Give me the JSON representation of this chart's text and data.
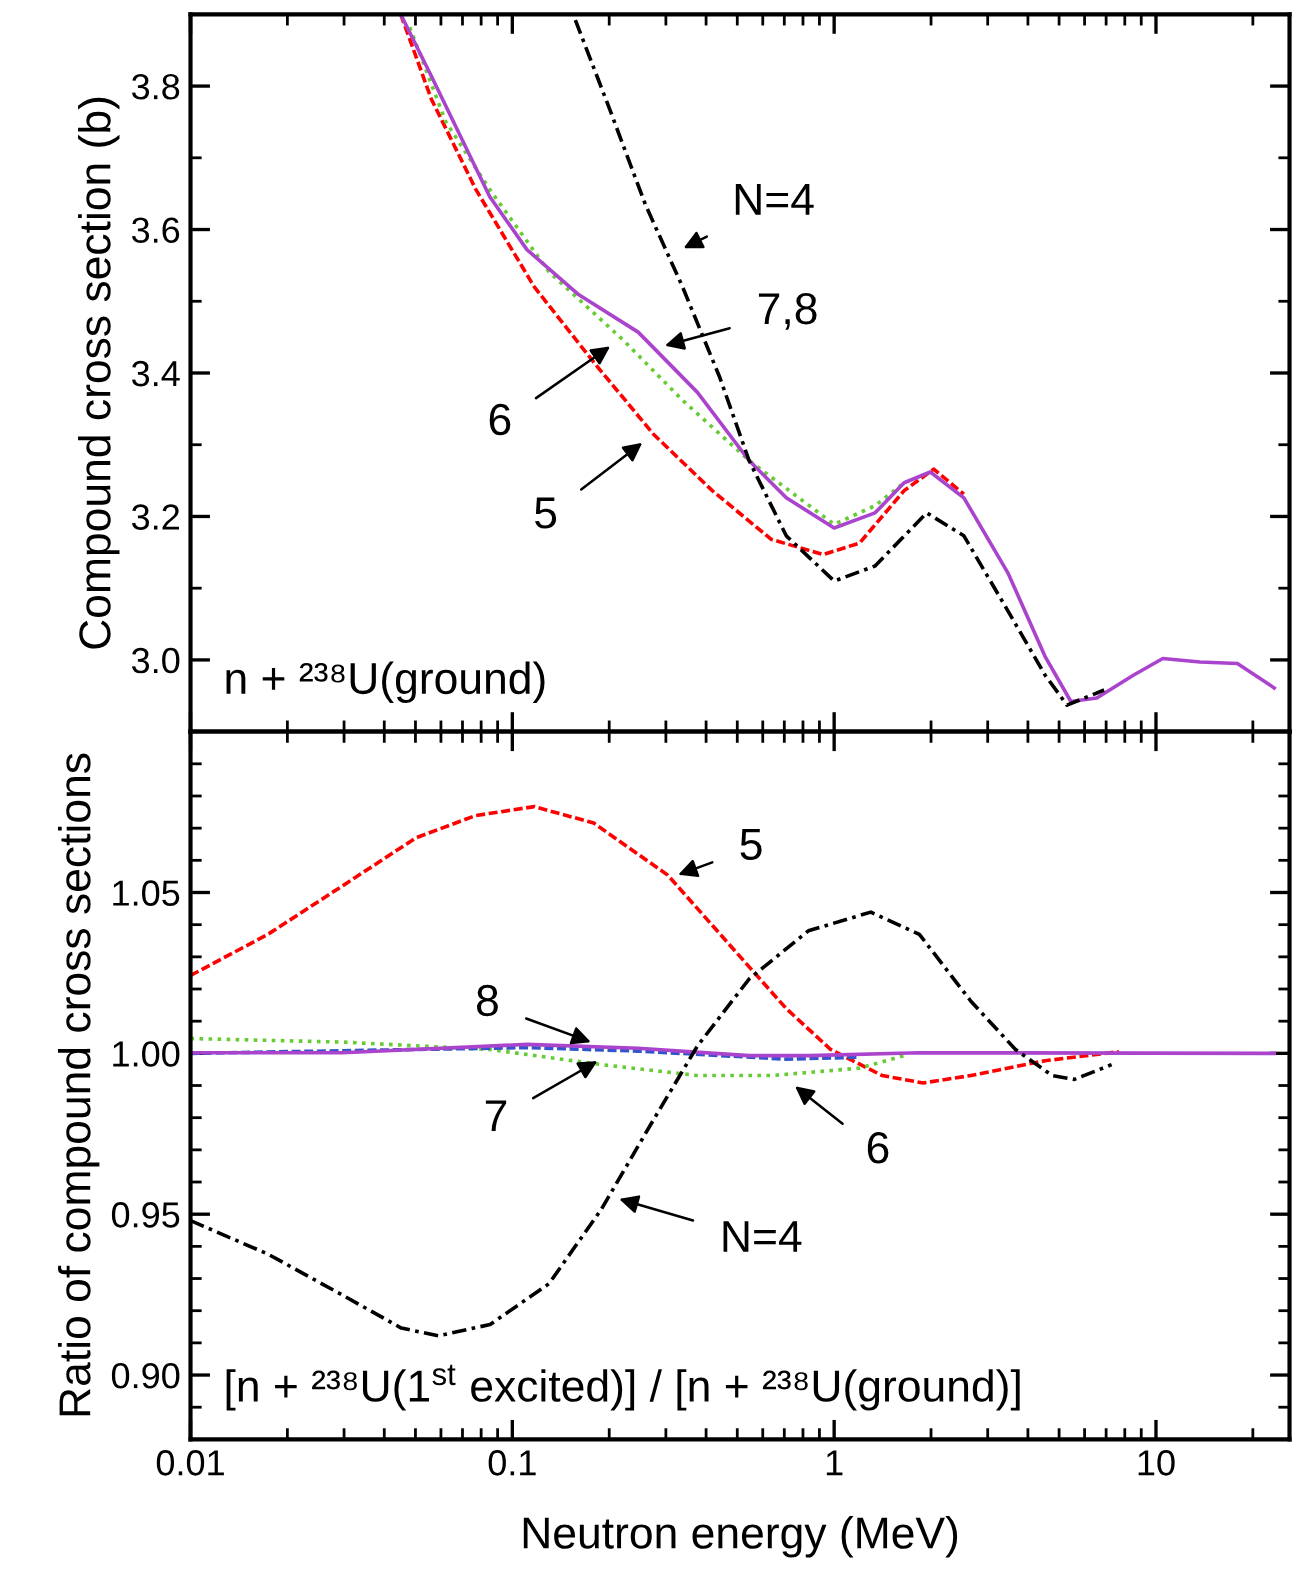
{
  "chart_data": [
    {
      "type": "line",
      "log": "x",
      "tick_labels": "y",
      "ylabel": "Compound cross section (b)",
      "xlim": [
        0.01,
        26
      ],
      "xticks": [
        0.01,
        0.1,
        1,
        10
      ],
      "ylim": [
        2.9,
        3.9
      ],
      "yticks": [
        {
          "value": 2.9,
          "label": null
        },
        {
          "value": 3.0,
          "label": "3.0"
        },
        {
          "value": 3.1,
          "label": null
        },
        {
          "value": 3.2,
          "label": "3.2"
        },
        {
          "value": 3.3,
          "label": null
        },
        {
          "value": 3.4,
          "label": "3.4"
        },
        {
          "value": 3.5,
          "label": null
        },
        {
          "value": 3.6,
          "label": "3.6"
        },
        {
          "value": 3.7,
          "label": null
        },
        {
          "value": 3.8,
          "label": "3.8"
        },
        {
          "value": 3.9,
          "label": null
        }
      ],
      "series": [
        {
          "color": "#ff0000",
          "line_style": "dashed",
          "x": [
            0.045,
            0.056,
            0.077,
            0.117,
            0.179,
            0.274,
            0.418,
            0.638,
            0.925,
            1.2,
            1.65,
            2.04,
            2.53
          ],
          "values": [
            3.9,
            3.782,
            3.656,
            3.52,
            3.415,
            3.315,
            3.236,
            3.168,
            3.147,
            3.163,
            3.236,
            3.266,
            3.231
          ]
        },
        {
          "color": "#66cc33",
          "line_style": "dotted",
          "x": [
            0.048,
            0.062,
            0.085,
            0.13,
            0.221,
            0.338,
            0.544,
            1.0,
            1.34,
            1.65
          ],
          "values": [
            3.882,
            3.751,
            3.656,
            3.541,
            3.446,
            3.362,
            3.278,
            3.189,
            3.215,
            3.247
          ]
        },
        {
          "color": "#aa44cc",
          "line_style": "solid",
          "x": [
            0.045,
            0.056,
            0.069,
            0.085,
            0.111,
            0.161,
            0.246,
            0.376,
            0.544,
            0.71,
            1.0,
            1.34,
            1.65,
            1.99,
            2.53,
            3.47,
            4.52,
            5.44,
            6.55,
            8.53,
            10.5,
            13.7,
            17.9,
            23.3
          ],
          "values": [
            3.9,
            3.814,
            3.73,
            3.646,
            3.572,
            3.509,
            3.457,
            3.373,
            3.278,
            3.226,
            3.184,
            3.205,
            3.247,
            3.262,
            3.226,
            3.121,
            3.005,
            2.942,
            2.947,
            2.979,
            3.002,
            2.997,
            2.995,
            2.961
          ]
        },
        {
          "color": "#000000",
          "line_style": "dashdot",
          "x": [
            0.157,
            0.199,
            0.259,
            0.338,
            0.441,
            0.544,
            0.71,
            1.0,
            1.34,
            1.94,
            2.53,
            3.47,
            4.52,
            5.29,
            6.9
          ],
          "values": [
            3.892,
            3.772,
            3.635,
            3.52,
            3.394,
            3.278,
            3.173,
            3.11,
            3.131,
            3.205,
            3.173,
            3.068,
            2.979,
            2.937,
            2.958
          ]
        }
      ],
      "annotations": [
        {
          "text": "N=4",
          "x": 0.317,
          "y": 3.567
        },
        {
          "text": "7,8",
          "x": 0.276,
          "y": 3.434
        },
        {
          "text": "6",
          "x": 0.215,
          "y": 3.446
        },
        {
          "text": "5",
          "x": 0.27,
          "y": 3.312
        },
        "n + ²³⁸U(ground)"
      ]
    },
    {
      "type": "line",
      "log": "x",
      "xlabel": "Neutron energy (MeV)",
      "ylabel": "Ratio of compound cross sections",
      "xlim": [
        0.01,
        26
      ],
      "xticks": [
        {
          "value": 0.01,
          "label": "0.01"
        },
        {
          "value": 0.1,
          "label": "0.1"
        },
        {
          "value": 1,
          "label": "1"
        },
        {
          "value": 10,
          "label": "10"
        }
      ],
      "ylim": [
        0.88,
        1.1
      ],
      "yticks": [
        {
          "value": 0.88,
          "label": null
        },
        {
          "value": 0.89,
          "label": null
        },
        {
          "value": 0.9,
          "label": "0.90"
        },
        {
          "value": 0.91,
          "label": null
        },
        {
          "value": 0.92,
          "label": null
        },
        {
          "value": 0.93,
          "label": null
        },
        {
          "value": 0.94,
          "label": null
        },
        {
          "value": 0.95,
          "label": "0.95"
        },
        {
          "value": 0.96,
          "label": null
        },
        {
          "value": 0.97,
          "label": null
        },
        {
          "value": 0.98,
          "label": null
        },
        {
          "value": 0.99,
          "label": null
        },
        {
          "value": 1.0,
          "label": "1.00"
        },
        {
          "value": 1.01,
          "label": null
        },
        {
          "value": 1.02,
          "label": null
        },
        {
          "value": 1.03,
          "label": null
        },
        {
          "value": 1.04,
          "label": null
        },
        {
          "value": 1.05,
          "label": "1.05"
        },
        {
          "value": 1.06,
          "label": null
        },
        {
          "value": 1.07,
          "label": null
        },
        {
          "value": 1.08,
          "label": null
        },
        {
          "value": 1.09,
          "label": null
        },
        {
          "value": 1.1,
          "label": null
        }
      ],
      "series": [
        {
          "color": "#ff0000",
          "line_style": "dashed",
          "x": [
            0.01,
            0.0174,
            0.0296,
            0.0502,
            0.0768,
            0.117,
            0.179,
            0.304,
            0.465,
            0.71,
            0.975,
            1.41,
            1.89,
            2.66,
            4.52,
            7.67
          ],
          "values": [
            1.0242,
            1.037,
            1.052,
            1.067,
            1.0739,
            1.0767,
            1.0716,
            1.0554,
            1.0346,
            1.0139,
            1.0012,
            0.9931,
            0.9908,
            0.9931,
            0.9977,
            1.0005
          ]
        },
        {
          "color": "#66cc33",
          "line_style": "dotted",
          "x": [
            0.01,
            0.0296,
            0.0853,
            0.189,
            0.376,
            0.638,
            1.2,
            1.65
          ],
          "values": [
            1.0046,
            1.0035,
            1.0012,
            0.9965,
            0.9931,
            0.9931,
            0.9954,
            0.9993
          ]
        },
        {
          "color": "#3355cc",
          "line_style": "dashed",
          "x": [
            0.01,
            0.0502,
            0.111,
            0.246,
            0.71,
            1.2
          ],
          "values": [
            1.0,
            1.0012,
            1.0018,
            1.0007,
            0.9982,
            0.9988
          ]
        },
        {
          "color": "#aa44cc",
          "line_style": "solid",
          "x": [
            0.01,
            0.0296,
            0.111,
            0.246,
            0.544,
            0.832,
            1.84,
            23.3
          ],
          "values": [
            1.0002,
            1.0002,
            1.0028,
            1.0016,
            0.9993,
            0.9993,
            1.0002,
            1.0
          ]
        },
        {
          "color": "#000000",
          "line_style": "dashdot",
          "x": [
            0.01,
            0.0174,
            0.0296,
            0.0452,
            0.0589,
            0.0853,
            0.13,
            0.189,
            0.274,
            0.376,
            0.544,
            0.832,
            1.3,
            1.84,
            2.66,
            3.66,
            4.76,
            5.58,
            7.28
          ],
          "values": [
            0.948,
            0.9376,
            0.9249,
            0.9146,
            0.9122,
            0.9157,
            0.9284,
            0.9515,
            0.9792,
            1.0023,
            1.0231,
            1.0381,
            1.0439,
            1.037,
            1.0162,
            1.0012,
            0.9931,
            0.9919,
            0.9965
          ]
        }
      ],
      "annotations": [
        {
          "text": "5",
          "x": 0.304,
          "y": 1.0543
        },
        {
          "text": "8",
          "x": 0.189,
          "y": 1.0023
        },
        {
          "text": "7",
          "x": 0.197,
          "y": 0.9993
        },
        {
          "text": "6",
          "x": 0.71,
          "y": 0.9919
        },
        {
          "text": "N=4",
          "x": 0.199,
          "y": 0.9557
        },
        "[n + ²³⁸U(1$^{st}$ excited)] / [n + ²³⁸U(ground)]"
      ]
    }
  ]
}
